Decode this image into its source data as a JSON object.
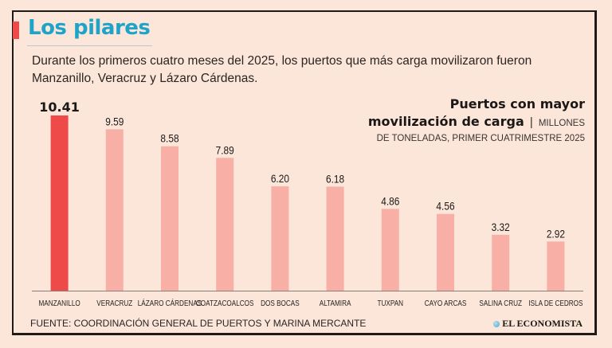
{
  "header": {
    "title": "Los pilares",
    "subtitle": "Durante los primeros cuatro meses del 2025, los puertos que más carga movilizaron fueron Manzanillo, Veracruz y Lázaro Cárdenas."
  },
  "chart_header": {
    "line1": "Puertos con mayor",
    "line2_bold": "movilización de carga",
    "separator": "|",
    "line2_units": "MILLONES",
    "line3": "DE TONELADAS, PRIMER CUATRIMESTRE 2025"
  },
  "footer": {
    "source": "FUENTE: COORDINACIÓN GENERAL DE PUERTOS Y MARINA MERCANTE",
    "brand": "EL ECONOMISTA"
  },
  "colors": {
    "accent": "#ee4a4a",
    "bar": "#f8afa5",
    "title": "#1ea3c9",
    "background": "#fbe6d9"
  },
  "chart_data": {
    "type": "bar",
    "title": "Puertos con mayor movilización de carga",
    "subtitle": "Millones de toneladas, primer cuatrimestre 2025",
    "xlabel": "",
    "ylabel": "Millones de toneladas",
    "ylim": [
      0,
      10.41
    ],
    "grid": false,
    "legend": "none",
    "categories": [
      "MANZANILLO",
      "VERACRUZ",
      "LÁZARO CÁRDENAS",
      "COATZACOALCOS",
      "DOS BOCAS",
      "ALTAMIRA",
      "TUXPAN",
      "CAYO ARCAS",
      "SALINA CRUZ",
      "ISLA DE CEDROS"
    ],
    "values": [
      10.41,
      9.59,
      8.58,
      7.89,
      6.2,
      6.18,
      4.86,
      4.56,
      3.32,
      2.92
    ],
    "value_labels": [
      "10.41",
      "9.59",
      "8.58",
      "7.89",
      "6.20",
      "6.18",
      "4.86",
      "4.56",
      "3.32",
      "2.92"
    ],
    "highlight_index": 0
  }
}
